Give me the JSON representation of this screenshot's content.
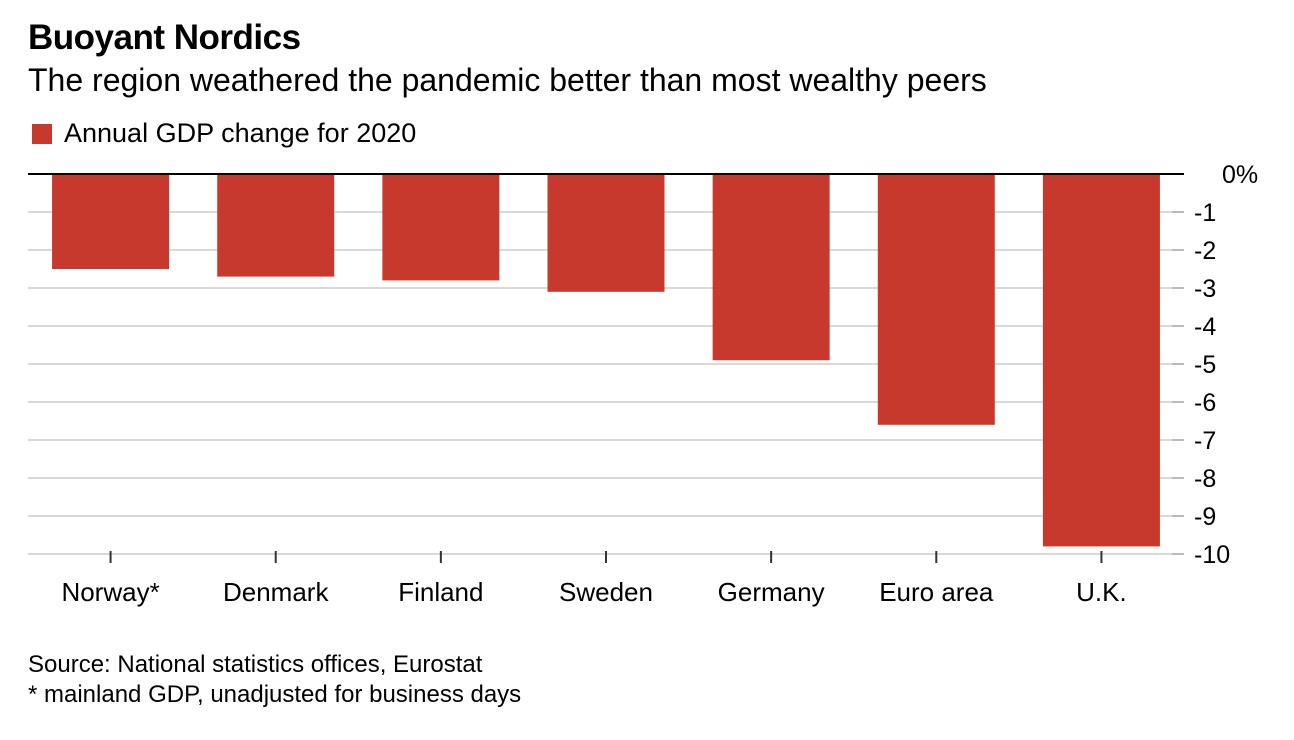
{
  "title": "Buoyant Nordics",
  "subtitle": "The region weathered the pandemic better than most wealthy peers",
  "legend": {
    "label": "Annual GDP change for 2020",
    "color": "#c8392d"
  },
  "source": "Source: National statistics offices, Eurostat",
  "footnote": "* mainland GDP, unadjusted for business days",
  "chart_data": {
    "type": "bar",
    "categories": [
      "Norway*",
      "Denmark",
      "Finland",
      "Sweden",
      "Germany",
      "Euro area",
      "U.K."
    ],
    "series": [
      {
        "name": "Annual GDP change for 2020",
        "values": [
          -2.5,
          -2.7,
          -2.8,
          -3.1,
          -4.9,
          -6.6,
          -9.8
        ]
      }
    ],
    "ylim": [
      -10,
      0
    ],
    "yticks": [
      "0%",
      "-1",
      "-2",
      "-3",
      "-4",
      "-5",
      "-6",
      "-7",
      "-8",
      "-9",
      "-10"
    ],
    "ytick_values": [
      0,
      -1,
      -2,
      -3,
      -4,
      -5,
      -6,
      -7,
      -8,
      -9,
      -10
    ],
    "grid": true,
    "bar_color": "#c8392d"
  }
}
